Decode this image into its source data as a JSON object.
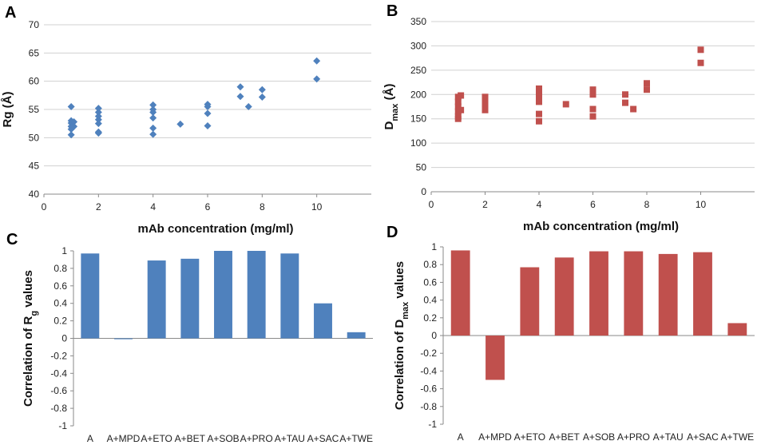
{
  "chart_data": [
    {
      "panel": "A",
      "type": "scatter",
      "xlabel": "mAb concentration (mg/ml)",
      "ylabel": "Rg (Å)",
      "xlim": [
        0,
        12
      ],
      "ylim": [
        40,
        70
      ],
      "xticks": [
        0,
        2,
        4,
        6,
        8,
        10
      ],
      "yticks": [
        40,
        45,
        50,
        55,
        60,
        65,
        70
      ],
      "grid": true,
      "marker": "diamond",
      "color": "#4f81bd",
      "points": [
        [
          1,
          55.5
        ],
        [
          1,
          53.0
        ],
        [
          1,
          52.6
        ],
        [
          1,
          52.0
        ],
        [
          1,
          51.5
        ],
        [
          1,
          50.5
        ],
        [
          1.1,
          52.8
        ],
        [
          1.1,
          52.0
        ],
        [
          2,
          55.2
        ],
        [
          2,
          54.5
        ],
        [
          2,
          53.8
        ],
        [
          2,
          53.2
        ],
        [
          2,
          52.5
        ],
        [
          2,
          51.0
        ],
        [
          2,
          50.8
        ],
        [
          4,
          55.8
        ],
        [
          4,
          55.0
        ],
        [
          4,
          54.5
        ],
        [
          4,
          53.5
        ],
        [
          4,
          51.7
        ],
        [
          4,
          50.6
        ],
        [
          5,
          52.4
        ],
        [
          6,
          55.9
        ],
        [
          6,
          55.5
        ],
        [
          6,
          54.3
        ],
        [
          6,
          52.1
        ],
        [
          7.2,
          59.0
        ],
        [
          7.2,
          57.3
        ],
        [
          7.5,
          55.5
        ],
        [
          8,
          58.5
        ],
        [
          8,
          57.2
        ],
        [
          10,
          63.6
        ],
        [
          10,
          60.4
        ]
      ]
    },
    {
      "panel": "B",
      "type": "scatter",
      "xlabel": "mAb concentration (mg/ml)",
      "ylabel": "Dmax (Å)",
      "ylabel_main": "D",
      "ylabel_sub": "max",
      "ylabel_unit": " (Å)",
      "xlim": [
        0,
        12
      ],
      "ylim": [
        0,
        350
      ],
      "xticks": [
        0,
        2,
        4,
        6,
        8,
        10
      ],
      "yticks": [
        0,
        50,
        100,
        150,
        200,
        250,
        300,
        350
      ],
      "grid": true,
      "marker": "square",
      "color": "#c0504d",
      "points": [
        [
          1,
          195
        ],
        [
          1,
          185
        ],
        [
          1,
          175
        ],
        [
          1,
          165
        ],
        [
          1,
          155
        ],
        [
          1,
          150
        ],
        [
          1.1,
          198
        ],
        [
          1.1,
          168
        ],
        [
          2,
          195
        ],
        [
          2,
          185
        ],
        [
          2,
          175
        ],
        [
          2,
          168
        ],
        [
          4,
          212
        ],
        [
          4,
          205
        ],
        [
          4,
          195
        ],
        [
          4,
          185
        ],
        [
          4,
          160
        ],
        [
          4,
          145
        ],
        [
          5,
          180
        ],
        [
          6,
          210
        ],
        [
          6,
          200
        ],
        [
          6,
          170
        ],
        [
          6,
          155
        ],
        [
          7.2,
          200
        ],
        [
          7.2,
          183
        ],
        [
          7.5,
          170
        ],
        [
          8,
          223
        ],
        [
          8,
          210
        ],
        [
          10,
          292
        ],
        [
          10,
          265
        ]
      ]
    },
    {
      "panel": "C",
      "type": "bar",
      "ylabel": "Correlation of Rg values",
      "ylabel_main": "Correlation  of  R",
      "ylabel_sub": "g",
      "ylabel_unit": "  values",
      "ylim": [
        -1,
        1
      ],
      "yticks": [
        -1,
        -0.8,
        -0.6,
        -0.4,
        -0.2,
        0,
        0.2,
        0.4,
        0.6,
        0.8,
        1
      ],
      "grid": false,
      "color": "#4f81bd",
      "categories": [
        "A",
        "A+MPD",
        "A+ETO",
        "A+BET",
        "A+SOB",
        "A+PRO",
        "A+TAU",
        "A+SAC",
        "A+TWE"
      ],
      "values": [
        0.97,
        -0.01,
        0.89,
        0.91,
        1.0,
        1.0,
        0.97,
        0.4,
        0.07
      ]
    },
    {
      "panel": "D",
      "type": "bar",
      "ylabel": "Correlation of Dmax values",
      "ylabel_main": "Correlation  of  D",
      "ylabel_sub": "max",
      "ylabel_unit": "  values",
      "ylim": [
        -1,
        1
      ],
      "yticks": [
        -1,
        -0.8,
        -0.6,
        -0.4,
        -0.2,
        0,
        0.2,
        0.4,
        0.6,
        0.8,
        1
      ],
      "grid": false,
      "color": "#c0504d",
      "categories": [
        "A",
        "A+MPD",
        "A+ETO",
        "A+BET",
        "A+SOB",
        "A+PRO",
        "A+TAU",
        "A+SAC",
        "A+TWE"
      ],
      "values": [
        0.96,
        -0.5,
        0.77,
        0.88,
        0.95,
        0.95,
        0.92,
        0.94,
        0.14
      ]
    }
  ]
}
